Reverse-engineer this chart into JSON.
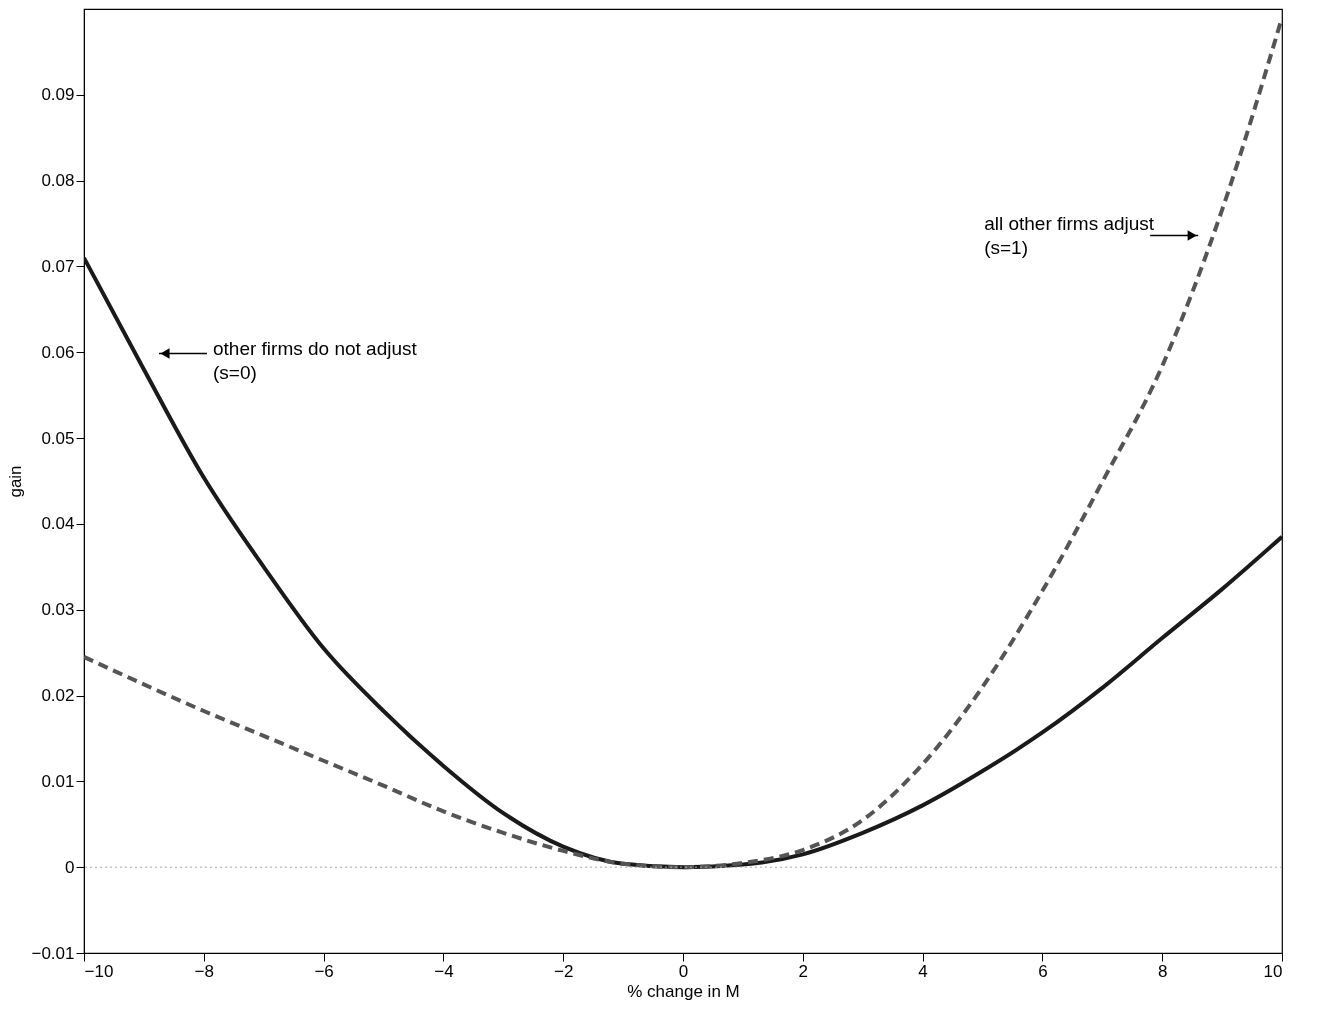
{
  "chart_data": {
    "type": "line",
    "xlabel": "% change in M",
    "ylabel": "gain",
    "x": [
      -10,
      -9,
      -8,
      -7,
      -6,
      -5,
      -4,
      -3,
      -2,
      -1,
      0,
      1,
      2,
      3,
      4,
      5,
      6,
      7,
      8,
      9,
      10
    ],
    "series": [
      {
        "color": "#1a1a1a",
        "line_style": "solid",
        "values": [
          0.071,
          0.058,
          0.0454,
          0.035,
          0.0255,
          0.0182,
          0.0118,
          0.0063,
          0.0024,
          0.0004,
          0,
          0.0003,
          0.0015,
          0.004,
          0.0072,
          0.0112,
          0.0157,
          0.0209,
          0.0267,
          0.0324,
          0.0385
        ]
      },
      {
        "color": "#555555",
        "line_style": "dashed",
        "values": [
          0.0245,
          0.0213,
          0.0182,
          0.0153,
          0.0124,
          0.0095,
          0.0065,
          0.004,
          0.0019,
          0.0004,
          0,
          0.0005,
          0.002,
          0.0055,
          0.012,
          0.021,
          0.0322,
          0.0449,
          0.0584,
          0.0766,
          0.099
        ]
      }
    ],
    "xlim": [
      -10,
      10
    ],
    "xticks": [
      -10,
      -8,
      -6,
      -4,
      -2,
      0,
      2,
      4,
      6,
      8,
      10
    ],
    "ylim": [
      -0.01,
      0.1
    ],
    "yticks": [
      -0.01,
      0,
      0.01,
      0.02,
      0.03,
      0.04,
      0.05,
      0.06,
      0.07,
      0.08,
      0.09
    ],
    "grid": false,
    "marker": "none",
    "ref_lines": [
      {
        "axis": "y",
        "value": 0,
        "color": "#aaaaaa",
        "line_style": "dotted"
      }
    ],
    "annotations": [
      "other firms do not adjust\n(s=0)",
      "all other firms adjust\n(s=1)"
    ]
  }
}
